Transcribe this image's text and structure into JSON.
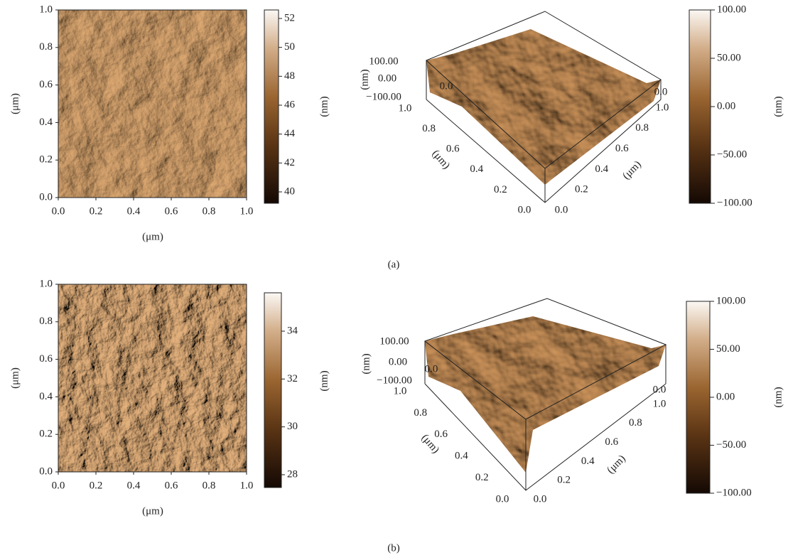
{
  "figure": {
    "panels": [
      {
        "label": "(a)",
        "map": {
          "x_label": "(μm)",
          "y_label": "(μm)",
          "x_ticks": [
            "0.0",
            "0.2",
            "0.4",
            "0.6",
            "0.8",
            "1.0"
          ],
          "y_ticks": [
            "1.0",
            "0.8",
            "0.6",
            "0.4",
            "0.2",
            "0.0"
          ],
          "colorbar": {
            "label": "(nm)",
            "ticks": [
              "52",
              "50",
              "48",
              "46",
              "44",
              "42",
              "40"
            ]
          }
        },
        "surface": {
          "z_label": "(nm)",
          "z_ticks": [
            "100.00",
            "0.00",
            "−100.00"
          ],
          "left_label": "(μm)",
          "left_ticks": [
            "1.0",
            "0.8",
            "0.6",
            "0.4",
            "0.2",
            "0.0"
          ],
          "right_label": "(μm)",
          "right_ticks": [
            "0.0",
            "0.2",
            "0.4",
            "0.6",
            "0.8",
            "1.0"
          ],
          "far_ticks": [
            "0.0",
            "0.0"
          ],
          "colorbar": {
            "label": "(nm)",
            "ticks": [
              "100.00",
              "50.00",
              "0.00",
              "−50.00",
              "−100.00"
            ]
          }
        }
      },
      {
        "label": "(b)",
        "map": {
          "x_label": "(μm)",
          "y_label": "(μm)",
          "x_ticks": [
            "0.0",
            "0.2",
            "0.4",
            "0.6",
            "0.8",
            "1.0"
          ],
          "y_ticks": [
            "1.0",
            "0.8",
            "0.6",
            "0.4",
            "0.2",
            "0.0"
          ],
          "colorbar": {
            "label": "(nm)",
            "ticks": [
              "34",
              "32",
              "30",
              "28"
            ]
          }
        },
        "surface": {
          "z_label": "(nm)",
          "z_ticks": [
            "100.00",
            "0.00",
            "−100.00"
          ],
          "left_label": "(μm)",
          "left_ticks": [
            "1.0",
            "0.8",
            "0.6",
            "0.4",
            "0.2",
            "0.0"
          ],
          "right_label": "(μm)",
          "right_ticks": [
            "0.0",
            "0.2",
            "0.4",
            "0.6",
            "0.8",
            "1.0"
          ],
          "far_ticks": [
            "0.0",
            "0.0"
          ],
          "colorbar": {
            "label": "(nm)",
            "ticks": [
              "100.00",
              "50.00",
              "0.00",
              "−50.00",
              "−100.00"
            ]
          }
        }
      }
    ]
  }
}
